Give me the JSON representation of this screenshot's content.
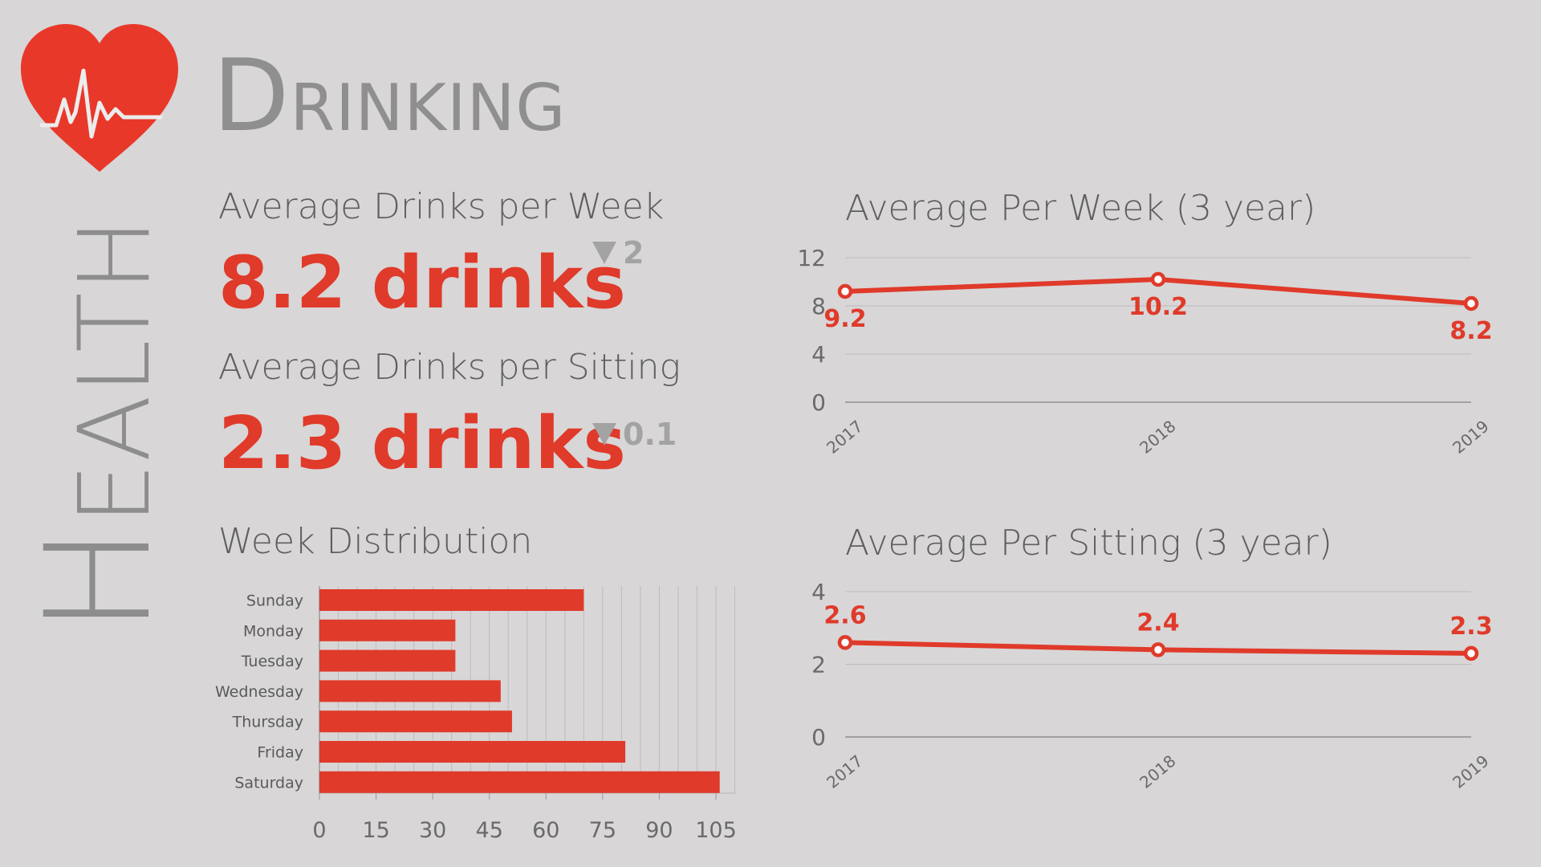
{
  "page": {
    "section": "HEALTH",
    "title": "DRINKING"
  },
  "metrics": {
    "per_week": {
      "label": "Average Drinks per Week",
      "value": "8.2 drinks",
      "delta": "2",
      "delta_direction": "down"
    },
    "per_sitting": {
      "label": "Average Drinks per Sitting",
      "value": "2.3 drinks",
      "delta": "0.1",
      "delta_direction": "down"
    }
  },
  "colors": {
    "accent": "#e03a2a",
    "muted": "#8d8d8d",
    "background": "#d8d6d7"
  },
  "chart_data": [
    {
      "id": "week_distribution",
      "type": "bar",
      "orientation": "horizontal",
      "title": "Week Distribution",
      "categories": [
        "Sunday",
        "Monday",
        "Tuesday",
        "Wednesday",
        "Thursday",
        "Friday",
        "Saturday"
      ],
      "values": [
        70,
        36,
        36,
        48,
        51,
        81,
        106
      ],
      "xlim": [
        0,
        110
      ],
      "xticks": [
        0,
        15,
        30,
        45,
        60,
        75,
        90,
        105
      ],
      "grid": true
    },
    {
      "id": "avg_per_week",
      "type": "line",
      "title": "Average Per Week (3 year)",
      "x": [
        "2017",
        "2018",
        "2019"
      ],
      "values": [
        9.2,
        10.2,
        8.2
      ],
      "labels": [
        "9.2",
        "10.2",
        "8.2"
      ],
      "ylim": [
        0,
        12
      ],
      "yticks": [
        0,
        4,
        8,
        12
      ],
      "grid": true
    },
    {
      "id": "avg_per_sitting",
      "type": "line",
      "title": "Average Per Sitting (3 year)",
      "x": [
        "2017",
        "2018",
        "2019"
      ],
      "values": [
        2.6,
        2.4,
        2.3
      ],
      "labels": [
        "2.6",
        "2.4",
        "2.3"
      ],
      "ylim": [
        0,
        4
      ],
      "yticks": [
        0,
        2,
        4
      ],
      "grid": true
    }
  ]
}
